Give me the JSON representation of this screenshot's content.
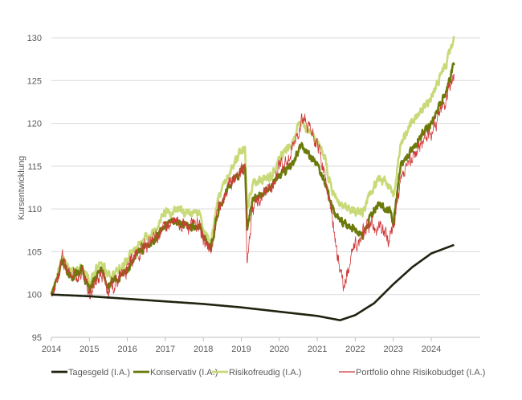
{
  "chart_data": {
    "type": "line",
    "title": "",
    "xlabel": "",
    "ylabel": "Kursentwicklung",
    "xlim": [
      2014,
      2025.3
    ],
    "ylim": [
      95,
      130
    ],
    "yticks": [
      95,
      100,
      105,
      110,
      115,
      120,
      125,
      130
    ],
    "xticks": [
      "2014",
      "2015",
      "2016",
      "2017",
      "2018",
      "2019",
      "2020",
      "2021",
      "2022",
      "2023",
      "2024"
    ],
    "grid": true,
    "legend": "bottom",
    "series": [
      {
        "name": "Tagesgeld (I.A.)",
        "color": "#1f2410",
        "noise": 0,
        "x": [
          2014,
          2015,
          2016,
          2017,
          2018,
          2019,
          2020,
          2021,
          2021.6,
          2022,
          2022.5,
          2023,
          2023.5,
          2024,
          2024.6
        ],
        "y": [
          100,
          99.8,
          99.5,
          99.2,
          98.9,
          98.5,
          98,
          97.5,
          97,
          97.6,
          99,
          101.2,
          103.2,
          104.8,
          105.8
        ]
      },
      {
        "name": "Konservativ (I.A.)",
        "color": "#6b7a0a",
        "noise": 0.35,
        "x": [
          2014,
          2014.3,
          2014.5,
          2014.8,
          2015,
          2015.3,
          2015.5,
          2015.8,
          2016,
          2016.3,
          2016.6,
          2017,
          2017.3,
          2017.6,
          2017.9,
          2018,
          2018.2,
          2018.4,
          2018.7,
          2019.1,
          2019.15,
          2019.3,
          2019.6,
          2019.8,
          2020,
          2020.3,
          2020.6,
          2020.75,
          2021,
          2021.2,
          2021.4,
          2021.6,
          2021.9,
          2022.2,
          2022.4,
          2022.6,
          2022.9,
          2023,
          2023.2,
          2023.5,
          2023.8,
          2024,
          2024.2,
          2024.4,
          2024.6
        ],
        "y": [
          100,
          104,
          102,
          103,
          100.5,
          103,
          101,
          102,
          103,
          105,
          106,
          108,
          108.5,
          108,
          108,
          106.5,
          105.5,
          110,
          113,
          115,
          108,
          111,
          112,
          112.5,
          114,
          115,
          117.5,
          116.5,
          115,
          113,
          110,
          108.5,
          108,
          107,
          109,
          110.5,
          110,
          108.5,
          115,
          117,
          119,
          120,
          122,
          124,
          126.8
        ]
      },
      {
        "name": "Risikofreudig (I.A.)",
        "color": "#c8da78",
        "noise": 0.4,
        "x": [
          2014,
          2014.3,
          2014.5,
          2014.8,
          2015,
          2015.3,
          2015.5,
          2015.8,
          2016,
          2016.3,
          2016.6,
          2017,
          2017.3,
          2017.6,
          2017.9,
          2018,
          2018.2,
          2018.4,
          2018.7,
          2019.1,
          2019.15,
          2019.3,
          2019.6,
          2019.8,
          2020,
          2020.3,
          2020.6,
          2020.75,
          2021,
          2021.2,
          2021.4,
          2021.6,
          2021.9,
          2022.2,
          2022.4,
          2022.6,
          2022.9,
          2023,
          2023.2,
          2023.5,
          2023.8,
          2024,
          2024.2,
          2024.4,
          2024.6
        ],
        "y": [
          100,
          104.5,
          102.5,
          103.5,
          101.5,
          104,
          102,
          103,
          104,
          106,
          107,
          109.5,
          110,
          109.5,
          109.5,
          107.5,
          106,
          111.5,
          114.5,
          117.5,
          110,
          113,
          113.5,
          114,
          116,
          117.5,
          120.5,
          119,
          118,
          116,
          112,
          110.5,
          110,
          109.5,
          112,
          113.5,
          113,
          111.5,
          118,
          120,
          122,
          123,
          125,
          127,
          130
        ]
      },
      {
        "name": "Portfolio ohne Risikobudget (I.A.)",
        "color": "#d0393a",
        "noise": 0.7,
        "x": [
          2014,
          2014.3,
          2014.5,
          2014.8,
          2015,
          2015.3,
          2015.5,
          2015.8,
          2016,
          2016.3,
          2016.6,
          2017,
          2017.3,
          2017.6,
          2017.9,
          2018,
          2018.2,
          2018.4,
          2018.7,
          2019.1,
          2019.15,
          2019.3,
          2019.6,
          2019.8,
          2020,
          2020.3,
          2020.6,
          2020.75,
          2021,
          2021.2,
          2021.4,
          2021.55,
          2021.7,
          2021.9,
          2022.1,
          2022.3,
          2022.6,
          2022.9,
          2023,
          2023.2,
          2023.5,
          2023.8,
          2024,
          2024.2,
          2024.4,
          2024.6
        ],
        "y": [
          100,
          104,
          102,
          102.5,
          100,
          102.5,
          100.5,
          102,
          103,
          105,
          106,
          108,
          108.5,
          108,
          108,
          106.5,
          105,
          110,
          113,
          115,
          104,
          110,
          112,
          112.5,
          115,
          116,
          120.5,
          119.5,
          117.5,
          114,
          109,
          104,
          100.5,
          105,
          106,
          108,
          108,
          106.5,
          108,
          113,
          116,
          118,
          119,
          121,
          123,
          125.8
        ]
      }
    ]
  }
}
